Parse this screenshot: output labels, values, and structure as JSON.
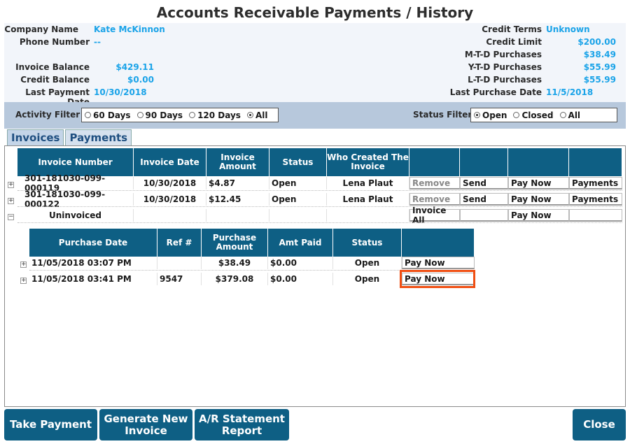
{
  "page": {
    "title": "Accounts Receivable Payments / History"
  },
  "customer": {
    "company_name_label": "Company Name",
    "company_name": "Kate McKinnon",
    "phone_label": "Phone Number",
    "phone": "--",
    "invoice_balance_label": "Invoice Balance",
    "invoice_balance": "$429.11",
    "credit_balance_label": "Credit Balance",
    "credit_balance": "$0.00",
    "last_payment_label": "Last Payment Date",
    "last_payment": "10/30/2018"
  },
  "credit": {
    "terms_label": "Credit Terms",
    "terms": "Unknown",
    "limit_label": "Credit Limit",
    "limit": "$200.00",
    "mtd_label": "M-T-D Purchases",
    "mtd": "$38.49",
    "ytd_label": "Y-T-D Purchases",
    "ytd": "$55.99",
    "ltd_label": "L-T-D Purchases",
    "ltd": "$55.99",
    "last_purchase_label": "Last Purchase Date",
    "last_purchase": "11/5/2018"
  },
  "activity_filter": {
    "label": "Activity Filter",
    "options": [
      "60 Days",
      "90 Days",
      "120 Days",
      "All"
    ],
    "selected": "All"
  },
  "status_filter": {
    "label": "Status Filter",
    "options": [
      "Open",
      "Closed",
      "All"
    ],
    "selected": "Open"
  },
  "tabs": [
    "Invoices",
    "Payments"
  ],
  "invoices": {
    "headers": [
      "Invoice Number",
      "Invoice Date",
      "Invoice Amount",
      "Status",
      "Who Created The Invoice"
    ],
    "rows": [
      {
        "number": "301-181030-099-000119",
        "date": "10/30/2018",
        "amount": "$4.87",
        "status": "Open",
        "creator": "Lena Plaut",
        "b1": "Remove",
        "b2": "Send",
        "b3": "Pay Now",
        "b4": "Payments"
      },
      {
        "number": "301-181030-099-000122",
        "date": "10/30/2018",
        "amount": "$12.45",
        "status": "Open",
        "creator": "Lena Plaut",
        "b1": "Remove",
        "b2": "Send",
        "b3": "Pay Now",
        "b4": "Payments"
      }
    ],
    "uninvoiced": {
      "label": "Uninvoiced",
      "b1": "Invoice All",
      "b3": "Pay Now"
    }
  },
  "purchases": {
    "headers": [
      "Purchase Date",
      "Ref #",
      "Purchase Amount",
      "Amt Paid",
      "Status"
    ],
    "rows": [
      {
        "date": "11/05/2018 03:07 PM",
        "ref": "",
        "amount": "$38.49",
        "paid": "$0.00",
        "status": "Open",
        "button": "Pay Now"
      },
      {
        "date": "11/05/2018 03:41 PM",
        "ref": "9547",
        "amount": "$379.08",
        "paid": "$0.00",
        "status": "Open",
        "button": "Pay Now"
      }
    ]
  },
  "actions": {
    "take_payment": "Take Payment",
    "generate_invoice": "Generate New Invoice",
    "ar_statement": "A/R Statement Report",
    "close": "Close"
  }
}
